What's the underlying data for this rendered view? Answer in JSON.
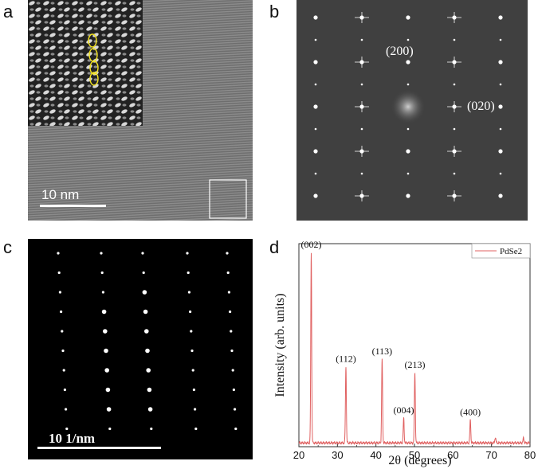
{
  "figure": {
    "panel_labels": [
      "a",
      "b",
      "c",
      "d"
    ]
  },
  "panel_a": {
    "scale_bar_label": "10 nm"
  },
  "panel_b": {
    "spot_labels": [
      "(200)",
      "(020)"
    ]
  },
  "panel_c": {
    "scale_bar_label": "10 1/nm"
  },
  "chart_data": {
    "type": "line",
    "xlabel": "2θ (degrees)",
    "ylabel": "Intensity (arb. units)",
    "xlim": [
      20,
      80
    ],
    "xticks": [
      20,
      30,
      40,
      50,
      60,
      70,
      80
    ],
    "yticks_shown": false,
    "legend": {
      "position": "top-right",
      "entries": [
        "PdSe2"
      ]
    },
    "series": [
      {
        "name": "PdSe2",
        "color": "#e06060",
        "baseline": 0.02,
        "peaks": [
          {
            "x": 23.2,
            "y": 1.0
          },
          {
            "x": 32.2,
            "y": 0.4
          },
          {
            "x": 41.6,
            "y": 0.44
          },
          {
            "x": 47.2,
            "y": 0.13
          },
          {
            "x": 50.1,
            "y": 0.37
          },
          {
            "x": 64.5,
            "y": 0.12
          },
          {
            "x": 71.0,
            "y": 0.03
          },
          {
            "x": 78.3,
            "y": 0.025
          }
        ]
      }
    ],
    "annotations": [
      {
        "x": 23.2,
        "label": "(002)"
      },
      {
        "x": 32.2,
        "label": "(112)"
      },
      {
        "x": 41.6,
        "label": "(113)"
      },
      {
        "x": 47.2,
        "label": "(004)"
      },
      {
        "x": 50.1,
        "label": "(213)"
      },
      {
        "x": 64.5,
        "label": "(400)"
      }
    ]
  }
}
